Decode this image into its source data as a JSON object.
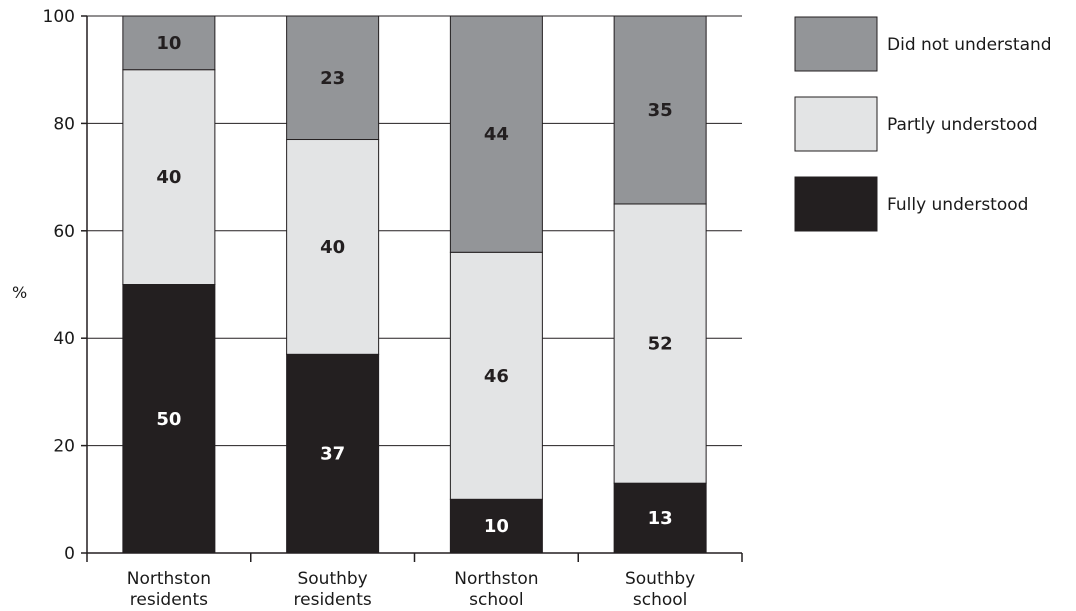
{
  "chart_data": {
    "type": "bar",
    "stacked": true,
    "title": "",
    "xlabel": "",
    "ylabel": "%",
    "ylim": [
      0,
      100
    ],
    "yticks": [
      0,
      20,
      40,
      60,
      80,
      100
    ],
    "grid": true,
    "legend_position": "right",
    "categories": [
      [
        "Northston",
        "residents"
      ],
      [
        "Southby",
        "residents"
      ],
      [
        "Northston",
        "school"
      ],
      [
        "Southby",
        "school"
      ]
    ],
    "series": [
      {
        "name": "Fully understood",
        "color": "#231f20",
        "label_color": "#ffffff",
        "values": [
          50,
          37,
          10,
          13
        ]
      },
      {
        "name": "Partly understood",
        "color": "#e3e4e5",
        "label_color": "#231f20",
        "values": [
          40,
          40,
          46,
          52
        ]
      },
      {
        "name": "Did not understand",
        "color": "#939598",
        "label_color": "#231f20",
        "values": [
          10,
          23,
          44,
          35
        ]
      }
    ],
    "legend_order": [
      "Did not understand",
      "Partly understood",
      "Fully understood"
    ]
  }
}
